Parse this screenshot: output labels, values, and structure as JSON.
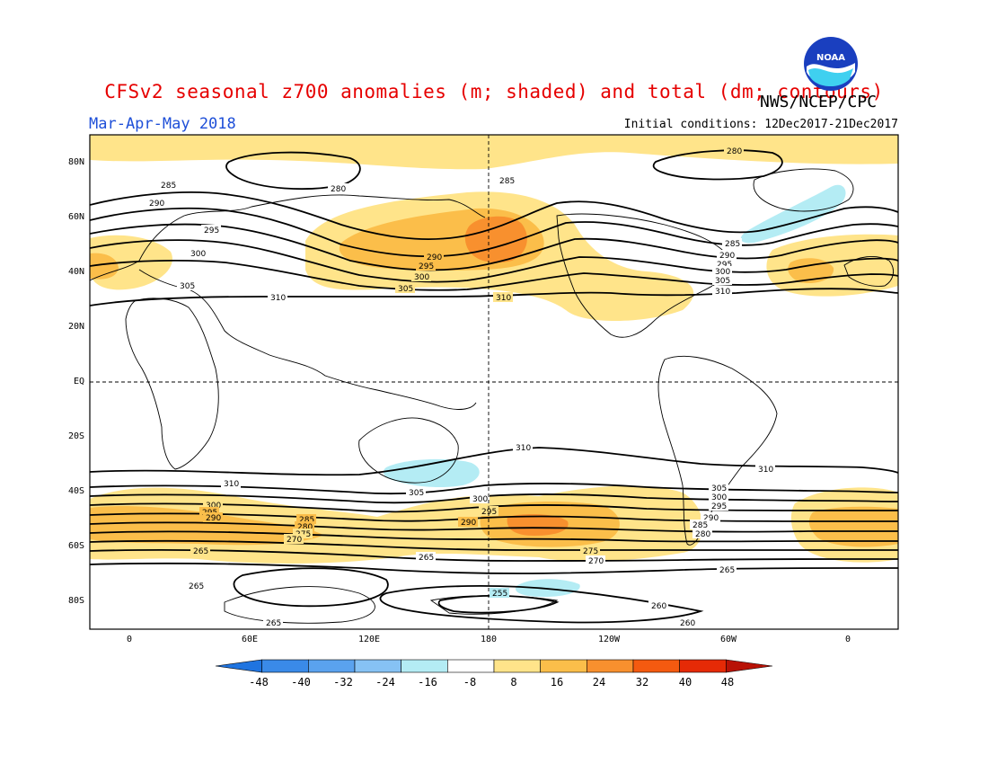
{
  "title": "CFSv2 seasonal z700 anomalies (m; shaded) and total (dm; contours)",
  "organization": "NWS/NCEP/CPC",
  "logo_text": "NOAA",
  "season": "Mar-Apr-May 2018",
  "initial_conditions": "Initial conditions: 12Dec2017-21Dec2017",
  "latitude_labels": [
    "80N",
    "60N",
    "40N",
    "20N",
    "EQ",
    "20S",
    "40S",
    "60S",
    "80S"
  ],
  "longitude_labels": [
    "0",
    "60E",
    "120E",
    "180",
    "120W",
    "60W",
    "0"
  ],
  "colorbar": {
    "labels": [
      "-48",
      "-40",
      "-32",
      "-24",
      "-16",
      "-8",
      "8",
      "16",
      "24",
      "32",
      "40",
      "48"
    ],
    "colors": [
      "#1f74e0",
      "#3a8ae8",
      "#5aa2ee",
      "#86c2f4",
      "#b4ecf4",
      "#ffffff",
      "#ffe48a",
      "#fbbe4a",
      "#f8902e",
      "#f45a10",
      "#e52a06",
      "#b81206"
    ]
  },
  "contour_labels": {
    "north_280_polar": "280",
    "north_285": "285",
    "north_290": "290",
    "north_295": "295",
    "north_300": "300",
    "north_305": "305",
    "north_310": "310",
    "south_310": "310",
    "south_305": "305",
    "south_300": "300",
    "south_295": "295",
    "south_290": "290",
    "south_285": "285",
    "south_280": "280",
    "south_275": "275",
    "south_270": "270",
    "south_265": "265",
    "south_260": "260",
    "south_255": "255"
  }
}
